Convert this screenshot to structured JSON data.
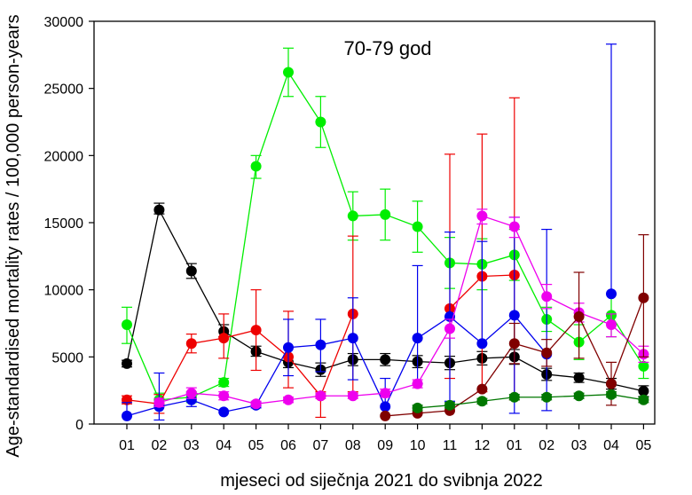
{
  "chart_data": {
    "type": "line",
    "title": "70-79 god",
    "xlabel": "mjeseci od siječnja 2021 do svibnja 2022",
    "ylabel": "Age-standardised mortality rates / 100,000 person-years",
    "categories": [
      "01",
      "02",
      "03",
      "04",
      "05",
      "06",
      "07",
      "08",
      "09",
      "10",
      "11",
      "12",
      "01",
      "02",
      "03",
      "04",
      "05"
    ],
    "ylim": [
      0,
      30000
    ],
    "yticks": [
      0,
      5000,
      10000,
      15000,
      20000,
      25000,
      30000
    ],
    "grid": false,
    "series": [
      {
        "color": "#000000",
        "values": [
          4500,
          15950,
          11400,
          6900,
          5400,
          4600,
          4050,
          4800,
          4800,
          4650,
          4550,
          4900,
          5000,
          3700,
          3450,
          3000,
          2450
        ],
        "lower": [
          4250,
          15650,
          10850,
          6500,
          5050,
          4200,
          3550,
          4350,
          4350,
          4200,
          4050,
          4400,
          4450,
          3250,
          3100,
          2600,
          2050
        ],
        "upper": [
          4750,
          16450,
          11950,
          7400,
          5800,
          5000,
          4550,
          5250,
          5250,
          5100,
          5050,
          5400,
          5550,
          4150,
          3800,
          3400,
          2850
        ]
      },
      {
        "color": "#00ee00",
        "values": [
          7400,
          1800,
          2000,
          3100,
          19200,
          26200,
          22500,
          15500,
          15600,
          14700,
          12000,
          11900,
          12600,
          7800,
          6100,
          8100,
          4300
        ],
        "lower": [
          6000,
          1300,
          1600,
          2800,
          18300,
          24400,
          20600,
          13700,
          13700,
          12800,
          10100,
          10000,
          10700,
          6900,
          4800,
          6500,
          3400
        ],
        "upper": [
          8700,
          2300,
          2400,
          3400,
          20000,
          28000,
          24400,
          17300,
          17500,
          16600,
          13900,
          13800,
          14500,
          8700,
          7400,
          9700,
          5200
        ]
      },
      {
        "color": "#ee0000",
        "values": [
          1800,
          1500,
          6000,
          6400,
          7000,
          5000,
          2100,
          8200,
          null,
          null,
          8600,
          11000,
          11100,
          null,
          null,
          null,
          null
        ],
        "lower": [
          1500,
          800,
          5300,
          4900,
          4000,
          2700,
          500,
          2400,
          null,
          null,
          3400,
          2400,
          1800,
          null,
          null,
          null,
          null
        ],
        "upper": [
          2100,
          2200,
          6700,
          8200,
          10000,
          8400,
          2400,
          14000,
          null,
          null,
          20100,
          21600,
          24300,
          null,
          null,
          null,
          null
        ]
      },
      {
        "color": "#0000ee",
        "values": [
          600,
          1300,
          1800,
          900,
          1400,
          5700,
          5900,
          6400,
          1300,
          6400,
          8000,
          6000,
          8100,
          5200,
          null,
          9700,
          null
        ],
        "lower": [
          null,
          300,
          1300,
          null,
          1200,
          3600,
          3900,
          3300,
          null,
          3000,
          1700,
          null,
          800,
          1000,
          null,
          null,
          null
        ],
        "upper": [
          1600,
          3800,
          2300,
          null,
          1600,
          7800,
          7800,
          9400,
          3400,
          11800,
          14300,
          13600,
          15400,
          14500,
          null,
          28300,
          null
        ]
      },
      {
        "color": "#ee00ee",
        "values": [
          null,
          1600,
          2300,
          2100,
          1500,
          1800,
          2100,
          2100,
          2300,
          3000,
          7100,
          15500,
          14700,
          9500,
          8300,
          7400,
          5200
        ],
        "lower": [
          null,
          1300,
          1900,
          1800,
          1300,
          1600,
          1900,
          1900,
          2000,
          2700,
          6400,
          14900,
          13900,
          8600,
          7600,
          6500,
          4600
        ],
        "upper": [
          null,
          1900,
          2700,
          2400,
          1700,
          2000,
          2300,
          2300,
          2600,
          3300,
          7800,
          16000,
          15400,
          10400,
          9000,
          8200,
          5800
        ]
      },
      {
        "color": "#800000",
        "values": [
          null,
          null,
          null,
          null,
          null,
          null,
          null,
          null,
          600,
          800,
          1000,
          2600,
          6000,
          5300,
          8000,
          3000,
          9400
        ],
        "lower": [
          null,
          null,
          null,
          null,
          null,
          null,
          null,
          null,
          null,
          null,
          null,
          null,
          4500,
          4300,
          4900,
          1400,
          5000
        ],
        "upper": [
          null,
          null,
          null,
          null,
          null,
          null,
          null,
          null,
          null,
          null,
          null,
          null,
          7500,
          6300,
          11300,
          4600,
          14100
        ]
      },
      {
        "color": "#007700",
        "values": [
          null,
          null,
          null,
          null,
          null,
          null,
          null,
          null,
          null,
          1200,
          1400,
          1700,
          2000,
          2000,
          2100,
          2200,
          1800
        ],
        "lower": [
          null,
          null,
          null,
          null,
          null,
          null,
          null,
          null,
          null,
          1000,
          1200,
          1500,
          1800,
          1800,
          1900,
          2000,
          1600
        ],
        "upper": [
          null,
          null,
          null,
          null,
          null,
          null,
          null,
          null,
          null,
          1400,
          1600,
          1900,
          2200,
          2200,
          2300,
          2400,
          2000
        ]
      }
    ]
  }
}
